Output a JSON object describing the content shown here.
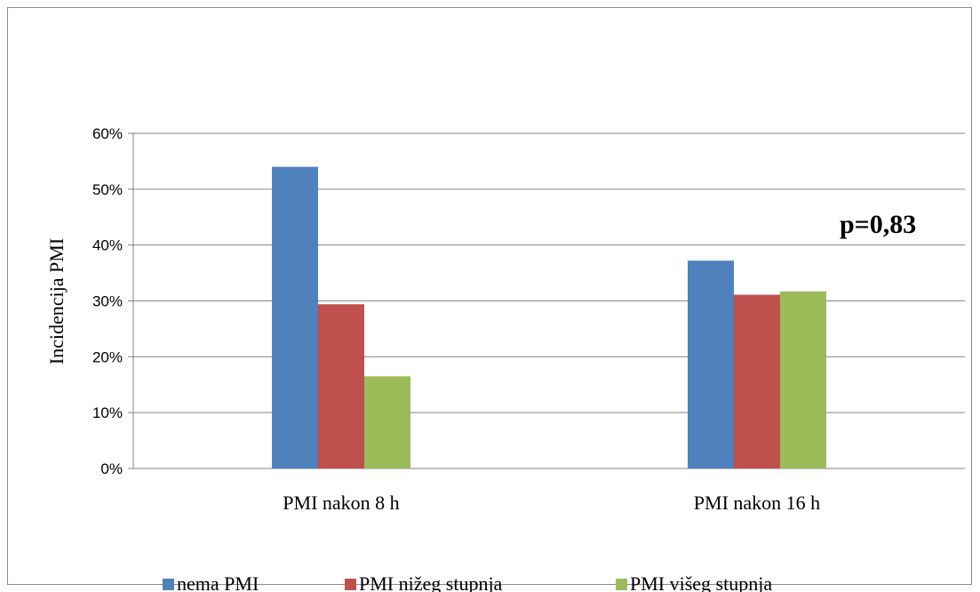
{
  "chart_data": {
    "type": "bar",
    "categories": [
      "PMI nakon 8 h",
      "PMI nakon 16 h"
    ],
    "series": [
      {
        "name": "nema PMI",
        "values": [
          54,
          37.2
        ],
        "color": "#4f81bd"
      },
      {
        "name": "PMI nižeg stupnja",
        "values": [
          29.4,
          31.1
        ],
        "color": "#c0504d"
      },
      {
        "name": "PMI višeg stupnja",
        "values": [
          16.5,
          31.7
        ],
        "color": "#9bbb59"
      }
    ],
    "ylabel": "Incidencija PMI",
    "ylim": [
      0,
      60
    ],
    "yticks": [
      "0%",
      "10%",
      "20%",
      "30%",
      "40%",
      "50%",
      "60%"
    ],
    "annotation": "p=0,83",
    "grid": true,
    "legend_position": "bottom"
  }
}
